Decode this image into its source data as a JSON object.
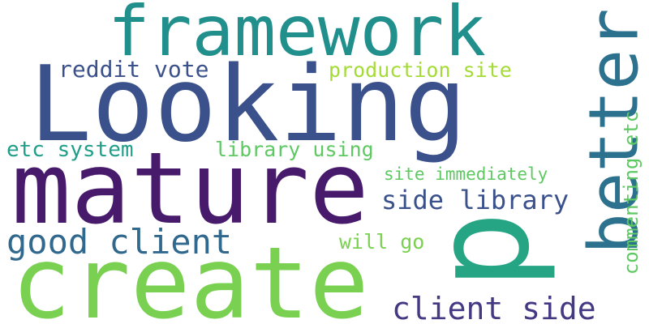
{
  "words": [
    {
      "text": "framework",
      "color": "#21908d"
    },
    {
      "text": "Looking",
      "color": "#3b518b"
    },
    {
      "text": "reddit vote",
      "color": "#3b518b"
    },
    {
      "text": "production site",
      "color": "#a5db36"
    },
    {
      "text": "better",
      "color": "#2c728e"
    },
    {
      "text": "etc system",
      "color": "#1f9e89"
    },
    {
      "text": "library using",
      "color": "#5ec962"
    },
    {
      "text": "mature",
      "color": "#481a6c"
    },
    {
      "text": "site immediately",
      "color": "#5ec962"
    },
    {
      "text": "commenting etc",
      "color": "#5ec962"
    },
    {
      "text": "side library",
      "color": "#3b518b"
    },
    {
      "text": "good client",
      "color": "#31688e"
    },
    {
      "text": "will go",
      "color": "#7ad151"
    },
    {
      "text": "p",
      "color": "#25a584"
    },
    {
      "text": "create",
      "color": "#7ad151"
    },
    {
      "text": "client side",
      "color": "#443983"
    }
  ]
}
